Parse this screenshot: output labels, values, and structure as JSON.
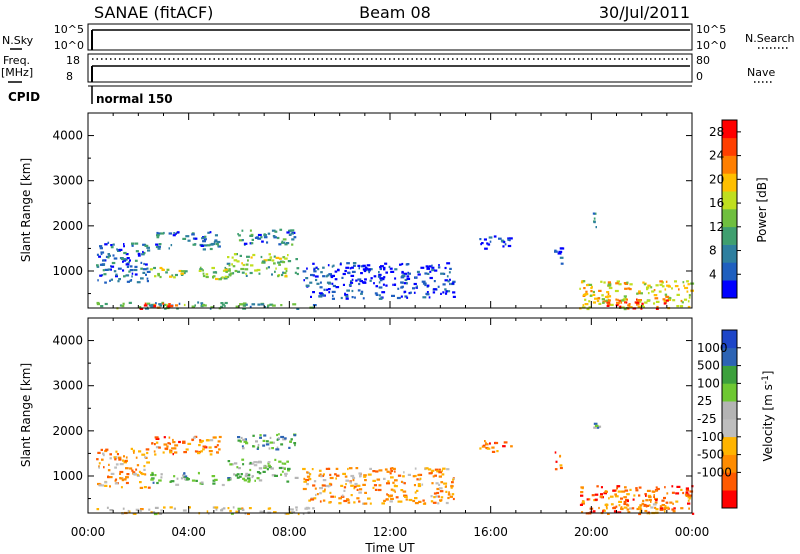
{
  "header": {
    "station": "SANAE (fitACF)",
    "beam": "Beam 08",
    "date": "30/Jul/2011"
  },
  "strips": {
    "nsky_label": "N.Sky",
    "nsky_ticks": [
      "10^5",
      "10^0"
    ],
    "nsearch_label": "N.Search",
    "nsearch_ticks": [
      "10^5",
      "10^0"
    ],
    "freq_label": "Freq.",
    "freq_unit": "[MHz]",
    "freq_ticks": [
      "18",
      "8"
    ],
    "nave_label": "Nave",
    "nave_ticks": [
      "80",
      "0"
    ],
    "cpid_label": "CPID",
    "cpid_value": "normal 150"
  },
  "colors": {
    "power": [
      "#0000ff",
      "#1f5fbf",
      "#2e7f9f",
      "#3f9f6f",
      "#6fbf3f",
      "#bfdf1f",
      "#ffbf00",
      "#ff7f00",
      "#ff3f00",
      "#ff0000"
    ],
    "velocity": [
      "#ff0000",
      "#ff5a00",
      "#ff8c00",
      "#ffb400",
      "#bebebe",
      "#b4b4b4",
      "#6ec832",
      "#3ca03c",
      "#2d64b4",
      "#1e46c8"
    ]
  },
  "chart_data": [
    {
      "type": "heatmap",
      "panel": "power",
      "ylabel": "Slant Range [km]",
      "ylim": [
        180,
        4500
      ],
      "yticks": [
        "4000",
        "3000",
        "2000",
        "1000"
      ],
      "xlim": [
        0,
        24
      ],
      "colorbar": {
        "label": "Power [dB]",
        "ticks": [
          "28",
          "24",
          "20",
          "16",
          "12",
          "8",
          "4"
        ],
        "range": [
          0,
          30
        ]
      },
      "regions": [
        {
          "t": [
            0.3,
            9.0
          ],
          "r": [
            180,
            330
          ],
          "level": 0.35
        },
        {
          "t": [
            2.0,
            3.6
          ],
          "r": [
            180,
            300
          ],
          "level": 0.9
        },
        {
          "t": [
            0.3,
            2.4
          ],
          "r": [
            750,
            1650
          ],
          "level": 0.2
        },
        {
          "t": [
            2.4,
            5.6
          ],
          "r": [
            820,
            1100
          ],
          "level": 0.5
        },
        {
          "t": [
            5.5,
            8.3
          ],
          "r": [
            900,
            1400
          ],
          "level": 0.45
        },
        {
          "t": [
            2.5,
            5.2
          ],
          "r": [
            1500,
            1900
          ],
          "level": 0.2
        },
        {
          "t": [
            5.8,
            8.2
          ],
          "r": [
            1600,
            1950
          ],
          "level": 0.25
        },
        {
          "t": [
            8.5,
            14.5
          ],
          "r": [
            400,
            1200
          ],
          "level": 0.1
        },
        {
          "t": [
            15.5,
            16.8
          ],
          "r": [
            1500,
            1800
          ],
          "level": 0.15
        },
        {
          "t": [
            19.5,
            24.0
          ],
          "r": [
            180,
            800
          ],
          "level": 0.6
        },
        {
          "t": [
            20.5,
            23.0
          ],
          "r": [
            180,
            400
          ],
          "level": 0.9
        },
        {
          "t": [
            20.0,
            20.3
          ],
          "r": [
            1950,
            2300
          ],
          "level": 0.25
        },
        {
          "t": [
            18.5,
            18.8
          ],
          "r": [
            1150,
            1550
          ],
          "level": 0.2
        }
      ]
    },
    {
      "type": "heatmap",
      "panel": "velocity",
      "ylabel": "Slant Range [km]",
      "ylim": [
        180,
        4500
      ],
      "yticks": [
        "4000",
        "3000",
        "2000",
        "1000"
      ],
      "xlim": [
        0,
        24
      ],
      "xticks": [
        "00:00",
        "04:00",
        "08:00",
        "12:00",
        "16:00",
        "20:00",
        "00:00"
      ],
      "xlabel": "Time UT",
      "colorbar": {
        "label": "Velocity [m s-1]",
        "ticks": [
          "1000",
          "500",
          "100",
          "25",
          "-25",
          "-100",
          "-500",
          "-1000"
        ]
      },
      "regions": [
        {
          "t": [
            0.3,
            9.0
          ],
          "r": [
            180,
            330
          ],
          "level": 0.45
        },
        {
          "t": [
            0.3,
            2.4
          ],
          "r": [
            750,
            1650
          ],
          "level": 0.3
        },
        {
          "t": [
            2.4,
            5.6
          ],
          "r": [
            820,
            1100
          ],
          "level": 0.65
        },
        {
          "t": [
            5.5,
            8.3
          ],
          "r": [
            900,
            1400
          ],
          "level": 0.6
        },
        {
          "t": [
            2.5,
            5.2
          ],
          "r": [
            1500,
            1900
          ],
          "level": 0.25
        },
        {
          "t": [
            5.8,
            8.2
          ],
          "r": [
            1600,
            1950
          ],
          "level": 0.7
        },
        {
          "t": [
            8.5,
            14.5
          ],
          "r": [
            400,
            1200
          ],
          "level": 0.3
        },
        {
          "t": [
            15.5,
            16.8
          ],
          "r": [
            1500,
            1800
          ],
          "level": 0.2
        },
        {
          "t": [
            19.5,
            24.0
          ],
          "r": [
            180,
            800
          ],
          "level": 0.2
        },
        {
          "t": [
            20.5,
            23.0
          ],
          "r": [
            180,
            400
          ],
          "level": 0.3
        },
        {
          "t": [
            20.0,
            20.3
          ],
          "r": [
            1950,
            2300
          ],
          "level": 0.7
        },
        {
          "t": [
            18.5,
            18.8
          ],
          "r": [
            1150,
            1550
          ],
          "level": 0.25
        }
      ]
    }
  ]
}
